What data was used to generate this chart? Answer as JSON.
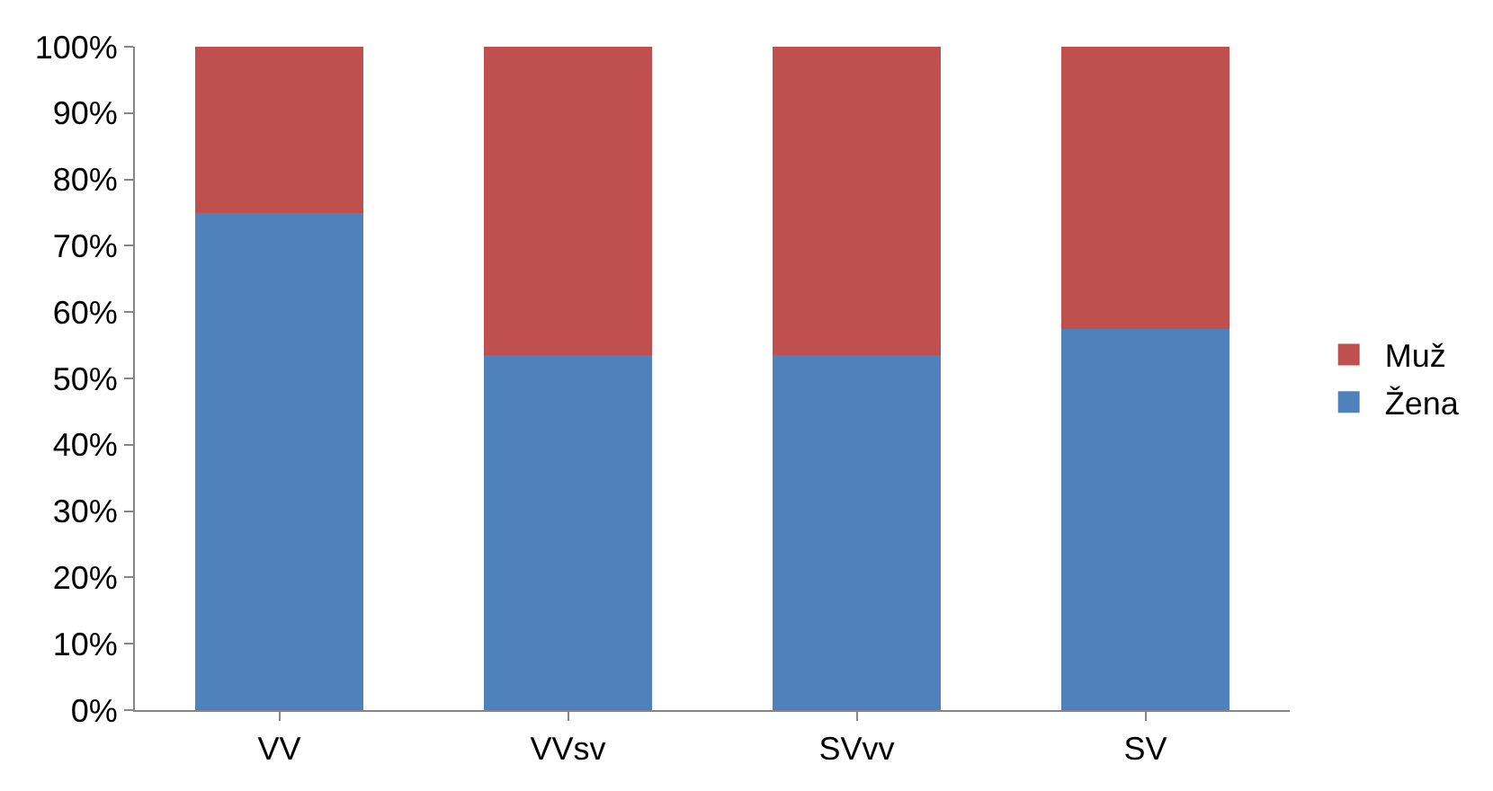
{
  "chart_data": {
    "type": "bar",
    "stacked": true,
    "categories": [
      "VV",
      "VVsv",
      "SVvv",
      "SV"
    ],
    "series": [
      {
        "name": "Žena",
        "color": "#4f81bd",
        "values": [
          75,
          53.5,
          53.5,
          57.5
        ]
      },
      {
        "name": "Muž",
        "color": "#c0504d",
        "values": [
          25,
          46.5,
          46.5,
          42.5
        ]
      }
    ],
    "ylim": [
      0,
      100
    ],
    "yticks": [
      {
        "value": 0,
        "label": "0%"
      },
      {
        "value": 10,
        "label": "10%"
      },
      {
        "value": 20,
        "label": "20%"
      },
      {
        "value": 30,
        "label": "30%"
      },
      {
        "value": 40,
        "label": "40%"
      },
      {
        "value": 50,
        "label": "50%"
      },
      {
        "value": 60,
        "label": "60%"
      },
      {
        "value": 70,
        "label": "70%"
      },
      {
        "value": 80,
        "label": "80%"
      },
      {
        "value": 90,
        "label": "90%"
      },
      {
        "value": 100,
        "label": "100%"
      }
    ],
    "grid": false,
    "legend": "right"
  }
}
